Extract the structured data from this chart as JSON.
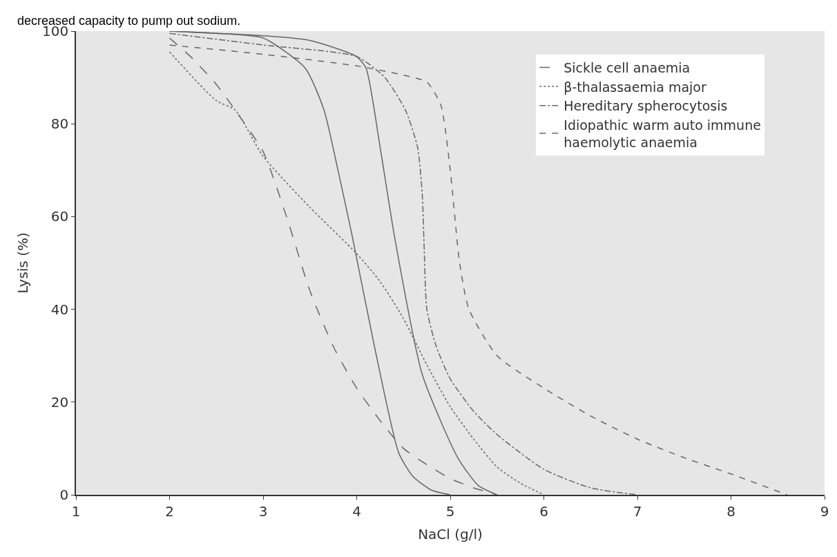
{
  "chart_data": {
    "type": "line",
    "xlabel": "NaCl (g/l)",
    "ylabel": "Lysis (%)",
    "xlim": [
      1,
      9
    ],
    "ylim": [
      0,
      100
    ],
    "xticks": [
      1,
      2,
      3,
      4,
      5,
      6,
      7,
      8,
      9
    ],
    "yticks": [
      0,
      20,
      40,
      60,
      80,
      100
    ],
    "grid": false,
    "legend": "top right",
    "marker": "none",
    "annotations": [
      "decreased capacity to pump out sodium."
    ],
    "series": [
      {
        "name": "Sickle cell anaemia",
        "color": "#666666",
        "line_style": "longdash",
        "x": [
          2,
          2.25,
          2.5,
          2.7,
          3,
          3.25,
          3.5,
          3.75,
          4,
          4.25,
          4.5,
          4.75,
          5,
          5.25,
          5.5
        ],
        "values": [
          98.5,
          94,
          88.5,
          83,
          74,
          60,
          44,
          32,
          23,
          16,
          10,
          6.5,
          3.5,
          1.5,
          0
        ]
      },
      {
        "name": "β-thalassaemia major",
        "color": "#666666",
        "line_style": "dotted",
        "x": [
          2,
          2.5,
          2.7,
          3,
          3.5,
          4,
          4.25,
          4.5,
          4.75,
          5,
          5.25,
          5.5,
          5.75,
          6
        ],
        "values": [
          95.5,
          85,
          83,
          73,
          62,
          52,
          46,
          38,
          28,
          19,
          12,
          6,
          2.5,
          0
        ]
      },
      {
        "name": "Hereditary spherocytosis",
        "color": "#666666",
        "line_style": "dashdot",
        "x": [
          2,
          3,
          4,
          4.3,
          4.52,
          4.65,
          4.7,
          4.72,
          4.75,
          4.85,
          5,
          5.25,
          5.5,
          6,
          6.5,
          7
        ],
        "values": [
          99.5,
          97,
          94.5,
          90,
          83,
          75,
          65,
          54,
          40,
          32,
          25,
          18,
          13,
          5.5,
          1.5,
          0
        ]
      },
      {
        "name": "Idiopathic warm auto immune haemolytic anaemia",
        "color": "#666666",
        "line_style": "dashed",
        "x": [
          2,
          3,
          4,
          4.5,
          4.75,
          4.9,
          5,
          5.1,
          5.2,
          5.5,
          6,
          6.5,
          7,
          7.5,
          8,
          8.6
        ],
        "values": [
          97,
          95,
          92.5,
          90.5,
          89,
          84,
          70,
          50,
          40,
          30,
          23,
          17,
          12,
          8,
          4.5,
          0
        ]
      },
      {
        "color": "#666666",
        "line_style": "solid",
        "x": [
          2,
          2.5,
          3,
          3.45,
          3.65,
          3.8,
          3.95,
          4.2,
          4.45,
          4.6,
          4.8,
          5
        ],
        "values": [
          100,
          99.5,
          98.5,
          92,
          83,
          70,
          56,
          31,
          9,
          4,
          1,
          0
        ]
      },
      {
        "color": "#666666",
        "line_style": "solid",
        "x": [
          2,
          3,
          3.5,
          4,
          4.1,
          4.25,
          4.41,
          4.7,
          5.08,
          5.3,
          5.5
        ],
        "values": [
          100,
          99,
          98,
          94.5,
          92,
          75,
          55,
          26,
          8,
          2,
          0
        ]
      }
    ]
  }
}
